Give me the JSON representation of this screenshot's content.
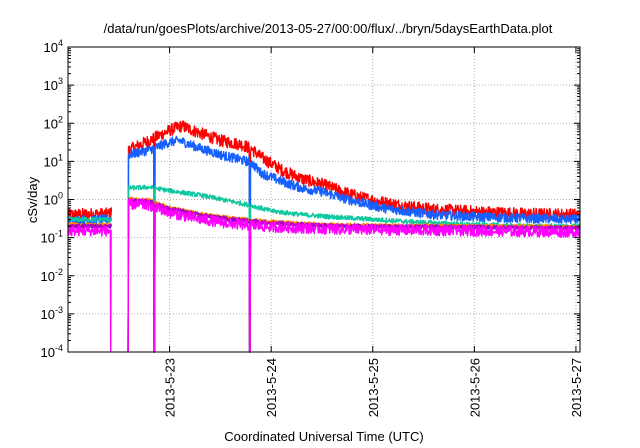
{
  "chart_data": {
    "type": "line",
    "title": "/data/run/goesPlots/archive/2013-05-27/00:00/flux/../bryn/5daysEarthData.plot",
    "xlabel": "Coordinated Universal Time (UTC)",
    "ylabel": "cSv/day",
    "yscale": "log",
    "ylim": [
      0.0001,
      10000
    ],
    "xlim_days": [
      0,
      5.04
    ],
    "x_ticks": [
      {
        "day": 1,
        "label": "2013-5-23"
      },
      {
        "day": 2,
        "label": "2013-5-24"
      },
      {
        "day": 3,
        "label": "2013-5-25"
      },
      {
        "day": 4,
        "label": "2013-5-26"
      },
      {
        "day": 5,
        "label": "2013-5-27"
      }
    ],
    "y_ticks": [
      {
        "base": "10",
        "exp": "-4",
        "value": 0.0001
      },
      {
        "base": "10",
        "exp": "-3",
        "value": 0.001
      },
      {
        "base": "10",
        "exp": "-2",
        "value": 0.01
      },
      {
        "base": "10",
        "exp": "-1",
        "value": 0.1
      },
      {
        "base": "10",
        "exp": "0",
        "value": 1
      },
      {
        "base": "10",
        "exp": "1",
        "value": 10
      },
      {
        "base": "10",
        "exp": "2",
        "value": 100
      },
      {
        "base": "10",
        "exp": "3",
        "value": 1000
      },
      {
        "base": "10",
        "exp": "4",
        "value": 10000
      }
    ],
    "grid": true,
    "series": [
      {
        "color": "#ff0000",
        "noise": 0.32,
        "points": [
          [
            0,
            0.4
          ],
          [
            0.42,
            0.42
          ],
          [
            0.6,
            20
          ],
          [
            0.8,
            35
          ],
          [
            1.0,
            65
          ],
          [
            1.12,
            85
          ],
          [
            1.3,
            55
          ],
          [
            1.5,
            35
          ],
          [
            1.7,
            28
          ],
          [
            1.8,
            22
          ],
          [
            1.9,
            13
          ],
          [
            2.1,
            6
          ],
          [
            2.3,
            3.5
          ],
          [
            2.5,
            2.5
          ],
          [
            2.7,
            1.6
          ],
          [
            2.9,
            1.1
          ],
          [
            3.1,
            0.85
          ],
          [
            3.3,
            0.68
          ],
          [
            3.6,
            0.55
          ],
          [
            4.0,
            0.48
          ],
          [
            4.5,
            0.42
          ],
          [
            5.04,
            0.4
          ]
        ]
      },
      {
        "color": "#1560ff",
        "noise": 0.25,
        "points": [
          [
            0,
            0.28
          ],
          [
            0.42,
            0.3
          ],
          [
            0.6,
            15
          ],
          [
            0.8,
            20
          ],
          [
            1.0,
            32
          ],
          [
            1.1,
            35
          ],
          [
            1.3,
            22
          ],
          [
            1.5,
            15
          ],
          [
            1.7,
            11
          ],
          [
            1.8,
            9.5
          ],
          [
            1.9,
            5
          ],
          [
            2.1,
            3
          ],
          [
            2.3,
            2
          ],
          [
            2.5,
            1.6
          ],
          [
            2.7,
            1.1
          ],
          [
            2.9,
            0.8
          ],
          [
            3.1,
            0.6
          ],
          [
            3.3,
            0.5
          ],
          [
            3.6,
            0.4
          ],
          [
            4.0,
            0.35
          ],
          [
            4.5,
            0.32
          ],
          [
            5.04,
            0.3
          ]
        ]
      },
      {
        "color": "#10c8a0",
        "noise": 0.12,
        "points": [
          [
            0,
            0.3
          ],
          [
            0.42,
            0.3
          ],
          [
            0.6,
            2
          ],
          [
            0.8,
            2.1
          ],
          [
            1.0,
            1.7
          ],
          [
            1.3,
            1.3
          ],
          [
            1.6,
            0.9
          ],
          [
            1.8,
            0.7
          ],
          [
            2.0,
            0.5
          ],
          [
            2.3,
            0.4
          ],
          [
            2.6,
            0.35
          ],
          [
            3.0,
            0.3
          ],
          [
            3.5,
            0.25
          ],
          [
            4.0,
            0.22
          ],
          [
            4.5,
            0.2
          ],
          [
            5.04,
            0.2
          ]
        ]
      },
      {
        "color": "#0000c0",
        "noise": 0.1,
        "points": [
          [
            0,
            0.2
          ],
          [
            0.42,
            0.2
          ],
          [
            0.6,
            0.9
          ],
          [
            0.8,
            0.85
          ],
          [
            1.0,
            0.55
          ],
          [
            1.3,
            0.38
          ],
          [
            1.6,
            0.3
          ],
          [
            2.0,
            0.24
          ],
          [
            2.5,
            0.21
          ],
          [
            3.0,
            0.2
          ],
          [
            4.0,
            0.19
          ],
          [
            5.04,
            0.18
          ]
        ]
      },
      {
        "color": "#ff8c00",
        "noise": 0.1,
        "points": [
          [
            0,
            0.22
          ],
          [
            0.42,
            0.22
          ],
          [
            0.6,
            1.05
          ],
          [
            0.8,
            0.95
          ],
          [
            1.0,
            0.62
          ],
          [
            1.3,
            0.42
          ],
          [
            1.6,
            0.33
          ],
          [
            2.0,
            0.26
          ],
          [
            2.5,
            0.22
          ],
          [
            3.0,
            0.21
          ],
          [
            4.0,
            0.2
          ],
          [
            5.04,
            0.19
          ]
        ]
      },
      {
        "color": "#aa00c0",
        "noise": 0.1,
        "points": [
          [
            0,
            0.2
          ],
          [
            0.42,
            0.2
          ],
          [
            0.6,
            0.95
          ],
          [
            0.8,
            0.9
          ],
          [
            1.0,
            0.58
          ],
          [
            1.3,
            0.4
          ],
          [
            1.6,
            0.31
          ],
          [
            2.0,
            0.25
          ],
          [
            2.5,
            0.21
          ],
          [
            3.0,
            0.2
          ],
          [
            4.0,
            0.19
          ],
          [
            5.04,
            0.18
          ]
        ]
      },
      {
        "color": "#ff00ff",
        "noise": 0.28,
        "points": [
          [
            0,
            0.15
          ],
          [
            0.42,
            0.15
          ],
          [
            0.6,
            0.75
          ],
          [
            0.8,
            0.7
          ],
          [
            1.0,
            0.45
          ],
          [
            1.3,
            0.3
          ],
          [
            1.6,
            0.23
          ],
          [
            2.0,
            0.19
          ],
          [
            2.5,
            0.17
          ],
          [
            3.0,
            0.16
          ],
          [
            4.0,
            0.15
          ],
          [
            5.04,
            0.14
          ]
        ]
      }
    ]
  }
}
